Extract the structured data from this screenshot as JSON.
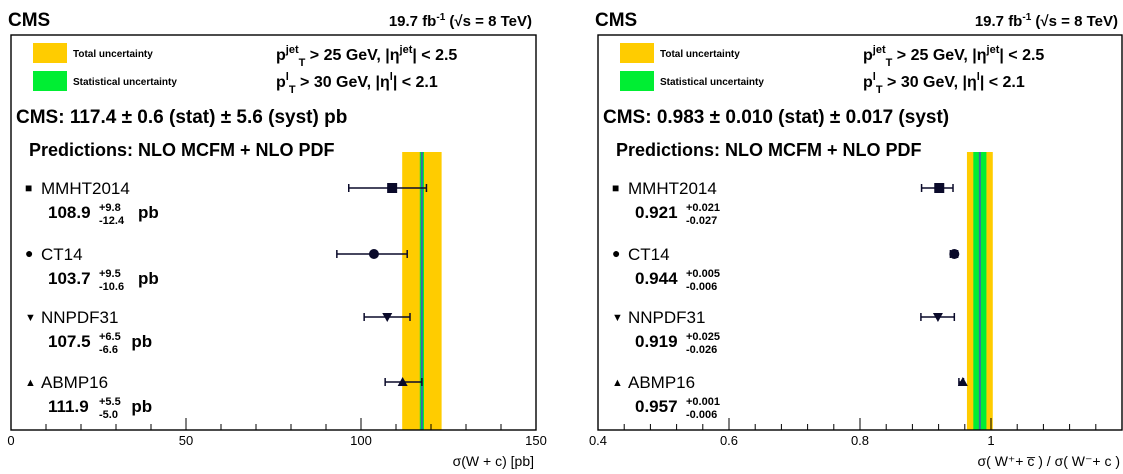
{
  "colors": {
    "total_band": "#ffcc00",
    "stat_band": "#00ee33",
    "central_line": "#3a6ea5",
    "marker": "#0a0a2a",
    "frame": "#000000"
  },
  "chart_data": [
    {
      "type": "scatter",
      "experiment_label": "CMS",
      "lumi_text": "19.7 fb⁻¹ (√s = 8 TeV)",
      "legend": [
        {
          "label": "Total uncertainty",
          "color": "#ffcc00"
        },
        {
          "label": "Statistical uncertainty",
          "color": "#00ee33"
        }
      ],
      "cuts": [
        "p_T^jet > 25 GeV, |η^jet| < 2.5",
        "p_T^l > 30 GeV, |η^l| < 2.1"
      ],
      "measurement_text": "CMS: 117.4 ± 0.6  (stat) ± 5.6  (syst) pb",
      "measurement": {
        "value": 117.4,
        "stat": 0.6,
        "syst": 5.6
      },
      "predictions_title": "Predictions: NLO MCFM + NLO PDF",
      "xlabel": "σ(W + c) [pb]",
      "xlim": [
        0,
        150
      ],
      "xticks": [
        "0",
        "50",
        "100",
        "150"
      ],
      "series": [
        {
          "name": "MMHT2014",
          "marker": "square",
          "value": 108.9,
          "err_up": 9.8,
          "err_down": 12.4,
          "value_text": "108.9",
          "up_text": "+9.8",
          "down_text": "-12.4",
          "unit": "pb"
        },
        {
          "name": "CT14",
          "marker": "circle",
          "value": 103.7,
          "err_up": 9.5,
          "err_down": 10.6,
          "value_text": "103.7",
          "up_text": "+9.5",
          "down_text": "-10.6",
          "unit": "pb"
        },
        {
          "name": "NNPDF31",
          "marker": "triangle-down",
          "value": 107.5,
          "err_up": 6.5,
          "err_down": 6.6,
          "value_text": "107.5",
          "up_text": "+6.5",
          "down_text": "-6.6",
          "unit": "pb"
        },
        {
          "name": "ABMP16",
          "marker": "triangle-up",
          "value": 111.9,
          "err_up": 5.5,
          "err_down": 5.0,
          "value_text": "111.9",
          "up_text": "+5.5",
          "down_text": "-5.0",
          "unit": "pb"
        }
      ]
    },
    {
      "type": "scatter",
      "experiment_label": "CMS",
      "lumi_text": "19.7 fb⁻¹ (√s = 8 TeV)",
      "legend": [
        {
          "label": "Total uncertainty",
          "color": "#ffcc00"
        },
        {
          "label": "Statistical uncertainty",
          "color": "#00ee33"
        }
      ],
      "cuts": [
        "p_T^jet > 25 GeV, |η^jet| < 2.5",
        "p_T^l > 30 GeV, |η^l| < 2.1"
      ],
      "measurement_text": "CMS: 0.983 ± 0.010 (stat) ± 0.017 (syst)",
      "measurement": {
        "value": 0.983,
        "stat": 0.01,
        "syst": 0.017
      },
      "predictions_title": "Predictions: NLO MCFM + NLO PDF",
      "xlabel": "σ( W⁺+ c̅ ) / σ( W⁻+ c )",
      "xlim": [
        0.4,
        1.2
      ],
      "xticks": [
        "0.4",
        "0.6",
        "0.8",
        "1"
      ],
      "series": [
        {
          "name": "MMHT2014",
          "marker": "square",
          "value": 0.921,
          "err_up": 0.021,
          "err_down": 0.027,
          "value_text": "0.921",
          "up_text": "+0.021",
          "down_text": "-0.027",
          "unit": ""
        },
        {
          "name": "CT14",
          "marker": "circle",
          "value": 0.944,
          "err_up": 0.005,
          "err_down": 0.006,
          "value_text": "0.944",
          "up_text": "+0.005",
          "down_text": "-0.006",
          "unit": ""
        },
        {
          "name": "NNPDF31",
          "marker": "triangle-down",
          "value": 0.919,
          "err_up": 0.025,
          "err_down": 0.026,
          "value_text": "0.919",
          "up_text": "+0.025",
          "down_text": "-0.026",
          "unit": ""
        },
        {
          "name": "ABMP16",
          "marker": "triangle-up",
          "value": 0.957,
          "err_up": 0.001,
          "err_down": 0.006,
          "value_text": "0.957",
          "up_text": "+0.001",
          "down_text": "-0.006",
          "unit": ""
        }
      ]
    }
  ]
}
